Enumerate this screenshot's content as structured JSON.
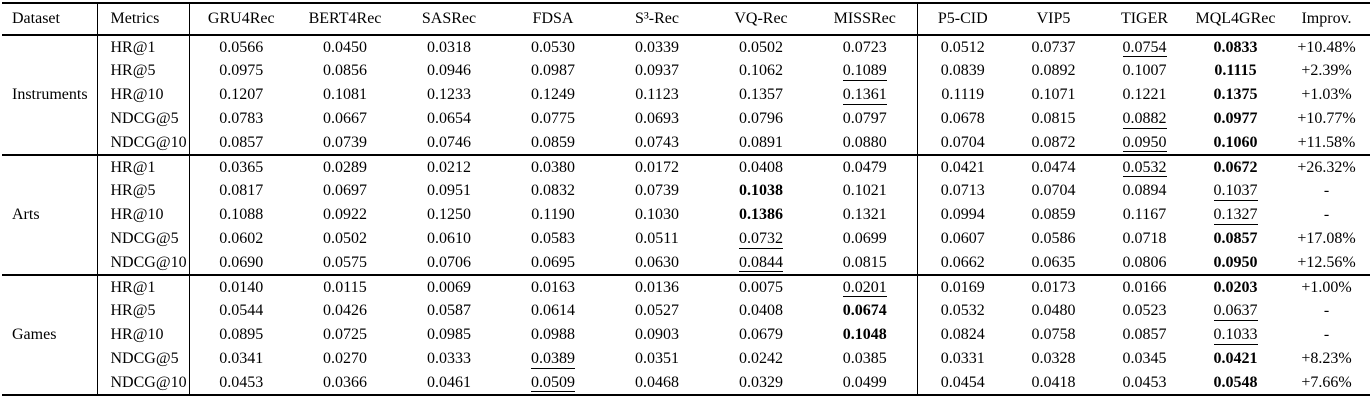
{
  "header": {
    "columns": [
      "Dataset",
      "Metrics",
      "GRU4Rec",
      "BERT4Rec",
      "SASRec",
      "FDSA",
      "S³-Rec",
      "VQ-Rec",
      "MISSRec",
      "P5-CID",
      "VIP5",
      "TIGER",
      "MQL4GRec",
      "Improv."
    ]
  },
  "sections": [
    {
      "dataset": "Instruments",
      "rows": [
        {
          "metric": "HR@1",
          "values": [
            "0.0566",
            "0.0450",
            "0.0318",
            "0.0530",
            "0.0339",
            "0.0502",
            "0.0723",
            "0.0512",
            "0.0737",
            "0.0754",
            "0.0833"
          ],
          "improv": "+10.48%",
          "bold_col": 10,
          "underline_col": 9
        },
        {
          "metric": "HR@5",
          "values": [
            "0.0975",
            "0.0856",
            "0.0946",
            "0.0987",
            "0.0937",
            "0.1062",
            "0.1089",
            "0.0839",
            "0.0892",
            "0.1007",
            "0.1115"
          ],
          "improv": "+2.39%",
          "bold_col": 10,
          "underline_col": 6
        },
        {
          "metric": "HR@10",
          "values": [
            "0.1207",
            "0.1081",
            "0.1233",
            "0.1249",
            "0.1123",
            "0.1357",
            "0.1361",
            "0.1119",
            "0.1071",
            "0.1221",
            "0.1375"
          ],
          "improv": "+1.03%",
          "bold_col": 10,
          "underline_col": 6
        },
        {
          "metric": "NDCG@5",
          "values": [
            "0.0783",
            "0.0667",
            "0.0654",
            "0.0775",
            "0.0693",
            "0.0796",
            "0.0797",
            "0.0678",
            "0.0815",
            "0.0882",
            "0.0977"
          ],
          "improv": "+10.77%",
          "bold_col": 10,
          "underline_col": 9
        },
        {
          "metric": "NDCG@10",
          "values": [
            "0.0857",
            "0.0739",
            "0.0746",
            "0.0859",
            "0.0743",
            "0.0891",
            "0.0880",
            "0.0704",
            "0.0872",
            "0.0950",
            "0.1060"
          ],
          "improv": "+11.58%",
          "bold_col": 10,
          "underline_col": 9
        }
      ]
    },
    {
      "dataset": "Arts",
      "rows": [
        {
          "metric": "HR@1",
          "values": [
            "0.0365",
            "0.0289",
            "0.0212",
            "0.0380",
            "0.0172",
            "0.0408",
            "0.0479",
            "0.0421",
            "0.0474",
            "0.0532",
            "0.0672"
          ],
          "improv": "+26.32%",
          "bold_col": 10,
          "underline_col": 9
        },
        {
          "metric": "HR@5",
          "values": [
            "0.0817",
            "0.0697",
            "0.0951",
            "0.0832",
            "0.0739",
            "0.1038",
            "0.1021",
            "0.0713",
            "0.0704",
            "0.0894",
            "0.1037"
          ],
          "improv": "-",
          "bold_col": 5,
          "underline_col": 10
        },
        {
          "metric": "HR@10",
          "values": [
            "0.1088",
            "0.0922",
            "0.1250",
            "0.1190",
            "0.1030",
            "0.1386",
            "0.1321",
            "0.0994",
            "0.0859",
            "0.1167",
            "0.1327"
          ],
          "improv": "-",
          "bold_col": 5,
          "underline_col": 10
        },
        {
          "metric": "NDCG@5",
          "values": [
            "0.0602",
            "0.0502",
            "0.0610",
            "0.0583",
            "0.0511",
            "0.0732",
            "0.0699",
            "0.0607",
            "0.0586",
            "0.0718",
            "0.0857"
          ],
          "improv": "+17.08%",
          "bold_col": 10,
          "underline_col": 5
        },
        {
          "metric": "NDCG@10",
          "values": [
            "0.0690",
            "0.0575",
            "0.0706",
            "0.0695",
            "0.0630",
            "0.0844",
            "0.0815",
            "0.0662",
            "0.0635",
            "0.0806",
            "0.0950"
          ],
          "improv": "+12.56%",
          "bold_col": 10,
          "underline_col": 5
        }
      ]
    },
    {
      "dataset": "Games",
      "rows": [
        {
          "metric": "HR@1",
          "values": [
            "0.0140",
            "0.0115",
            "0.0069",
            "0.0163",
            "0.0136",
            "0.0075",
            "0.0201",
            "0.0169",
            "0.0173",
            "0.0166",
            "0.0203"
          ],
          "improv": "+1.00%",
          "bold_col": 10,
          "underline_col": 6
        },
        {
          "metric": "HR@5",
          "values": [
            "0.0544",
            "0.0426",
            "0.0587",
            "0.0614",
            "0.0527",
            "0.0408",
            "0.0674",
            "0.0532",
            "0.0480",
            "0.0523",
            "0.0637"
          ],
          "improv": "-",
          "bold_col": 6,
          "underline_col": 10
        },
        {
          "metric": "HR@10",
          "values": [
            "0.0895",
            "0.0725",
            "0.0985",
            "0.0988",
            "0.0903",
            "0.0679",
            "0.1048",
            "0.0824",
            "0.0758",
            "0.0857",
            "0.1033"
          ],
          "improv": "-",
          "bold_col": 6,
          "underline_col": 10
        },
        {
          "metric": "NDCG@5",
          "values": [
            "0.0341",
            "0.0270",
            "0.0333",
            "0.0389",
            "0.0351",
            "0.0242",
            "0.0385",
            "0.0331",
            "0.0328",
            "0.0345",
            "0.0421"
          ],
          "improv": "+8.23%",
          "bold_col": 10,
          "underline_col": 3
        },
        {
          "metric": "NDCG@10",
          "values": [
            "0.0453",
            "0.0366",
            "0.0461",
            "0.0509",
            "0.0468",
            "0.0329",
            "0.0499",
            "0.0454",
            "0.0418",
            "0.0453",
            "0.0548"
          ],
          "improv": "+7.66%",
          "bold_col": 10,
          "underline_col": 3
        }
      ]
    }
  ]
}
